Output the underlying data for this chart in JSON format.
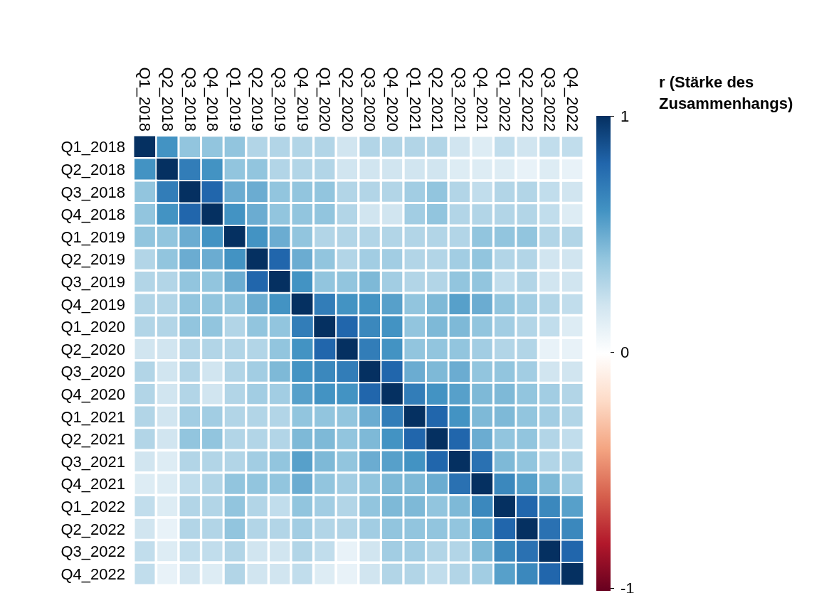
{
  "chart_data": {
    "type": "heatmap",
    "clabel": "r (Stärke des Zusammenhangs)",
    "categories": [
      "Q1_2018",
      "Q2_2018",
      "Q3_2018",
      "Q4_2018",
      "Q1_2019",
      "Q2_2019",
      "Q3_2019",
      "Q4_2019",
      "Q1_2020",
      "Q2_2020",
      "Q3_2020",
      "Q4_2020",
      "Q1_2021",
      "Q2_2021",
      "Q3_2021",
      "Q4_2021",
      "Q1_2022",
      "Q2_2022",
      "Q3_2022",
      "Q4_2022"
    ],
    "y_categories": [
      "Q1_2018",
      "Q2_2018",
      "Q3_2018",
      "Q4_2018",
      "Q1_2019",
      "Q2_2019",
      "Q3_2019",
      "Q4_2019",
      "Q1_2020",
      "Q2_2020",
      "Q3_2020",
      "Q4_2020",
      "Q1_2021",
      "Q2_2021",
      "Q3_2021",
      "Q4_2021",
      "Q1_2022",
      "Q2_2022",
      "Q3_2022",
      "Q4_2022"
    ],
    "cells": [
      [
        1,
        0.6,
        0.4,
        0.4,
        0.4,
        0.3,
        0.3,
        0.3,
        0.3,
        0.2,
        0.3,
        0.3,
        0.3,
        0.3,
        0.2,
        0.15,
        0.25,
        0.2,
        0.25,
        0.25
      ],
      [
        0.6,
        1,
        0.7,
        0.6,
        0.4,
        0.4,
        0.3,
        0.3,
        0.3,
        0.2,
        0.2,
        0.2,
        0.2,
        0.2,
        0.15,
        0.15,
        0.15,
        0.1,
        0.15,
        0.1
      ],
      [
        0.4,
        0.7,
        1,
        0.8,
        0.5,
        0.5,
        0.4,
        0.4,
        0.4,
        0.3,
        0.3,
        0.3,
        0.35,
        0.4,
        0.3,
        0.25,
        0.3,
        0.3,
        0.25,
        0.2
      ],
      [
        0.4,
        0.6,
        0.8,
        1,
        0.6,
        0.5,
        0.4,
        0.4,
        0.4,
        0.3,
        0.2,
        0.2,
        0.35,
        0.4,
        0.3,
        0.3,
        0.3,
        0.3,
        0.25,
        0.15
      ],
      [
        0.4,
        0.4,
        0.5,
        0.6,
        1,
        0.6,
        0.5,
        0.4,
        0.3,
        0.3,
        0.3,
        0.3,
        0.3,
        0.3,
        0.3,
        0.4,
        0.4,
        0.4,
        0.3,
        0.3
      ],
      [
        0.3,
        0.4,
        0.5,
        0.5,
        0.6,
        1,
        0.8,
        0.5,
        0.4,
        0.3,
        0.35,
        0.35,
        0.3,
        0.3,
        0.35,
        0.4,
        0.3,
        0.3,
        0.2,
        0.2
      ],
      [
        0.3,
        0.3,
        0.4,
        0.4,
        0.5,
        0.8,
        1,
        0.6,
        0.4,
        0.4,
        0.45,
        0.35,
        0.3,
        0.3,
        0.4,
        0.4,
        0.25,
        0.3,
        0.2,
        0.2
      ],
      [
        0.3,
        0.3,
        0.4,
        0.4,
        0.4,
        0.5,
        0.6,
        1,
        0.7,
        0.6,
        0.6,
        0.55,
        0.4,
        0.45,
        0.55,
        0.5,
        0.4,
        0.35,
        0.3,
        0.25
      ],
      [
        0.3,
        0.3,
        0.4,
        0.4,
        0.3,
        0.4,
        0.4,
        0.7,
        1,
        0.8,
        0.65,
        0.6,
        0.4,
        0.45,
        0.45,
        0.4,
        0.35,
        0.3,
        0.25,
        0.15
      ],
      [
        0.2,
        0.2,
        0.3,
        0.3,
        0.3,
        0.3,
        0.4,
        0.6,
        0.8,
        1,
        0.7,
        0.6,
        0.4,
        0.4,
        0.4,
        0.35,
        0.3,
        0.3,
        0.1,
        0.1
      ],
      [
        0.3,
        0.2,
        0.3,
        0.2,
        0.3,
        0.35,
        0.45,
        0.6,
        0.65,
        0.7,
        1,
        0.8,
        0.5,
        0.45,
        0.5,
        0.4,
        0.4,
        0.35,
        0.2,
        0.2
      ],
      [
        0.3,
        0.2,
        0.3,
        0.2,
        0.3,
        0.35,
        0.35,
        0.55,
        0.6,
        0.6,
        0.8,
        1,
        0.7,
        0.6,
        0.55,
        0.45,
        0.45,
        0.4,
        0.35,
        0.3
      ],
      [
        0.3,
        0.2,
        0.35,
        0.35,
        0.3,
        0.3,
        0.3,
        0.4,
        0.4,
        0.4,
        0.5,
        0.7,
        1,
        0.8,
        0.6,
        0.45,
        0.45,
        0.4,
        0.35,
        0.3
      ],
      [
        0.3,
        0.2,
        0.4,
        0.4,
        0.3,
        0.3,
        0.3,
        0.45,
        0.45,
        0.4,
        0.45,
        0.6,
        0.8,
        1,
        0.8,
        0.5,
        0.4,
        0.4,
        0.3,
        0.25
      ],
      [
        0.2,
        0.15,
        0.3,
        0.3,
        0.3,
        0.35,
        0.4,
        0.55,
        0.45,
        0.4,
        0.5,
        0.55,
        0.6,
        0.8,
        1,
        0.75,
        0.45,
        0.4,
        0.3,
        0.3
      ],
      [
        0.15,
        0.15,
        0.25,
        0.3,
        0.4,
        0.4,
        0.4,
        0.5,
        0.4,
        0.35,
        0.4,
        0.45,
        0.45,
        0.5,
        0.75,
        1,
        0.65,
        0.55,
        0.45,
        0.35
      ],
      [
        0.25,
        0.15,
        0.3,
        0.3,
        0.4,
        0.3,
        0.25,
        0.4,
        0.35,
        0.3,
        0.4,
        0.45,
        0.45,
        0.4,
        0.45,
        0.65,
        1,
        0.8,
        0.65,
        0.55
      ],
      [
        0.2,
        0.1,
        0.3,
        0.3,
        0.4,
        0.3,
        0.3,
        0.35,
        0.3,
        0.3,
        0.35,
        0.4,
        0.4,
        0.4,
        0.4,
        0.55,
        0.8,
        1,
        0.75,
        0.65
      ],
      [
        0.25,
        0.15,
        0.25,
        0.25,
        0.3,
        0.2,
        0.2,
        0.3,
        0.25,
        0.1,
        0.2,
        0.35,
        0.35,
        0.3,
        0.3,
        0.45,
        0.65,
        0.75,
        1,
        0.8
      ],
      [
        0.25,
        0.1,
        0.2,
        0.15,
        0.3,
        0.2,
        0.2,
        0.25,
        0.15,
        0.1,
        0.2,
        0.3,
        0.3,
        0.25,
        0.3,
        0.35,
        0.55,
        0.65,
        0.8,
        1
      ]
    ],
    "clim": [
      -1,
      1
    ],
    "cticks": [
      -1,
      0,
      1
    ]
  }
}
